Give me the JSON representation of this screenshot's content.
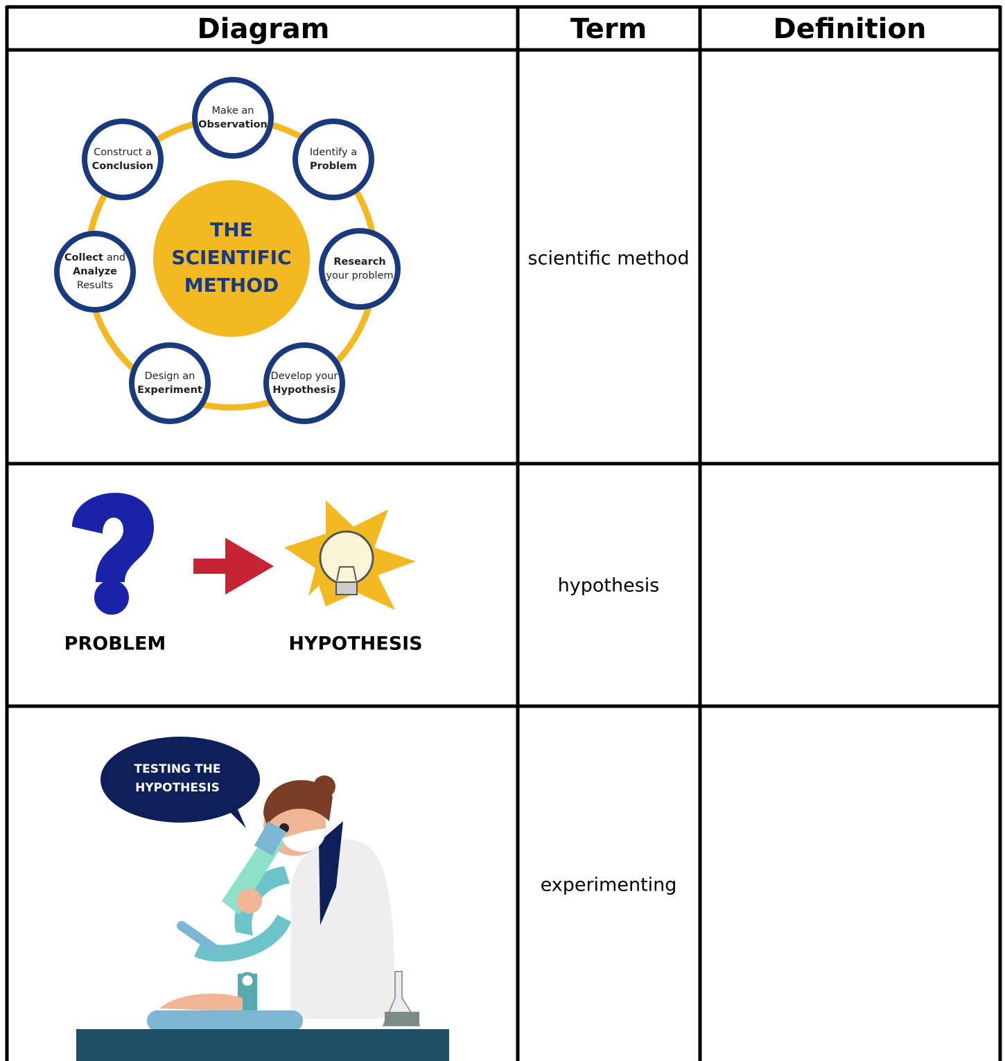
{
  "table": {
    "header": [
      "Diagram",
      "Term",
      "Definition"
    ],
    "rows": [
      {
        "term": "scientific method",
        "diagram": {
          "center": [
            "THE",
            "SCIENTIFIC",
            "METHOD"
          ],
          "nodes": [
            {
              "lines": [
                [
                  {
                    "text": "Make an",
                    "bold": false
                  }
                ],
                [
                  {
                    "text": "Observation",
                    "bold": true
                  }
                ]
              ]
            },
            {
              "lines": [
                [
                  {
                    "text": "Identify a",
                    "bold": false
                  }
                ],
                [
                  {
                    "text": "Problem",
                    "bold": true
                  }
                ]
              ]
            },
            {
              "lines": [
                [
                  {
                    "text": "Research",
                    "bold": true
                  }
                ],
                [
                  {
                    "text": "your problem",
                    "bold": false
                  }
                ]
              ]
            },
            {
              "lines": [
                [
                  {
                    "text": "Develop your",
                    "bold": false
                  }
                ],
                [
                  {
                    "text": "Hypothesis",
                    "bold": true
                  }
                ]
              ]
            },
            {
              "lines": [
                [
                  {
                    "text": "Design an",
                    "bold": false
                  }
                ],
                [
                  {
                    "text": "Experiment",
                    "bold": true
                  }
                ]
              ]
            },
            {
              "lines": [
                [
                  {
                    "text": "Collect",
                    "bold": true
                  },
                  {
                    "text": "and",
                    "bold": false
                  }
                ],
                [
                  {
                    "text": "Analyze",
                    "bold": true
                  }
                ],
                [
                  {
                    "text": "Results",
                    "bold": false
                  }
                ]
              ]
            },
            {
              "lines": [
                [
                  {
                    "text": "Construct a",
                    "bold": false
                  }
                ],
                [
                  {
                    "text": "Conclusion",
                    "bold": true
                  }
                ]
              ]
            }
          ]
        }
      },
      {
        "term": "hypothesis",
        "diagram": {
          "labels": [
            "PROBLEM",
            "HYPOTHESIS"
          ]
        }
      },
      {
        "term": "experimenting",
        "diagram": {
          "bubble": [
            "TESTING THE",
            "HYPOTHESIS"
          ]
        }
      }
    ]
  }
}
